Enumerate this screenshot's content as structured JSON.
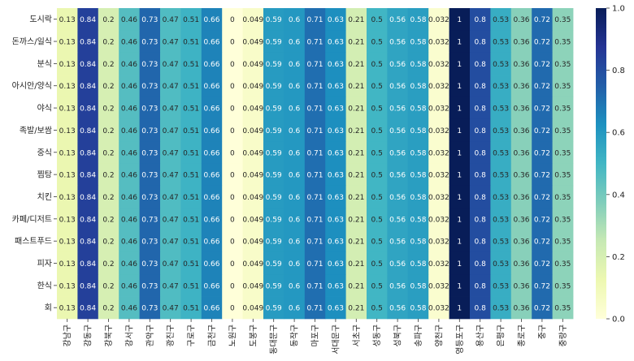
{
  "chart_data": {
    "type": "heatmap",
    "colormap": "YlGnBu",
    "row_labels": [
      "도시락",
      "돈까스/일식",
      "분식",
      "아시안/양식",
      "야식",
      "족발/보쌈",
      "중식",
      "찜탕",
      "치킨",
      "카페/디저트",
      "패스트푸드",
      "피자",
      "한식",
      "회"
    ],
    "col_labels": [
      "강남구",
      "강동구",
      "강북구",
      "강서구",
      "관악구",
      "광진구",
      "구로구",
      "금천구",
      "노원구",
      "도봉구",
      "동대문구",
      "동작구",
      "마포구",
      "서대문구",
      "서초구",
      "성동구",
      "성북구",
      "송파구",
      "양천구",
      "영등포구",
      "용산구",
      "은평구",
      "종로구",
      "중구",
      "중랑구"
    ],
    "values_per_column": [
      0.13,
      0.84,
      0.2,
      0.46,
      0.73,
      0.47,
      0.51,
      0.66,
      0,
      0.049,
      0.59,
      0.6,
      0.71,
      0.63,
      0.21,
      0.5,
      0.56,
      0.58,
      0.032,
      1,
      0.8,
      0.53,
      0.36,
      0.72,
      0.35
    ],
    "value_labels": [
      "0.13",
      "0.84",
      "0.2",
      "0.46",
      "0.73",
      "0.47",
      "0.51",
      "0.66",
      "0",
      "0.049",
      "0.59",
      "0.6",
      "0.71",
      "0.63",
      "0.21",
      "0.5",
      "0.56",
      "0.58",
      "0.032",
      "1",
      "0.8",
      "0.53",
      "0.36",
      "0.72",
      "0.35"
    ],
    "vmin": 0,
    "vmax": 1,
    "colorbar_ticks": [
      "0.0",
      "0.2",
      "0.4",
      "0.6",
      "0.8",
      "1.0"
    ],
    "title": "",
    "xlabel": "",
    "ylabel": ""
  }
}
